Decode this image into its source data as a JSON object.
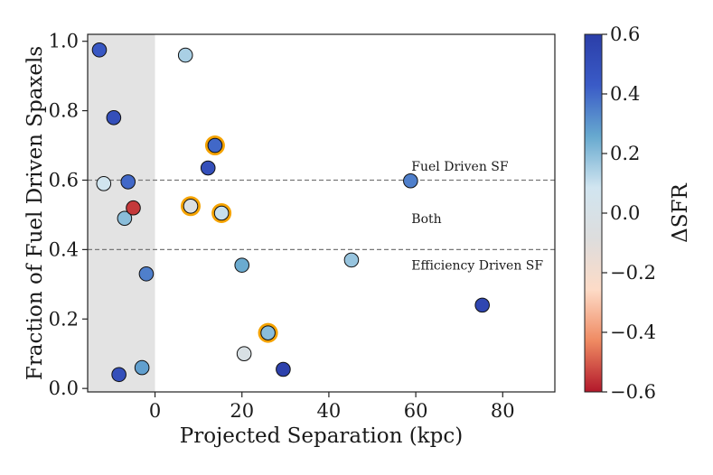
{
  "chart_data": {
    "type": "scatter",
    "xlabel": "Projected Separation (kpc)",
    "ylabel": "Fraction of Fuel Driven Spaxels",
    "xlim": [
      -15.5,
      92
    ],
    "ylim": [
      -0.01,
      1.02
    ],
    "xticks": [
      0,
      20,
      40,
      60,
      80
    ],
    "yticks": [
      0.0,
      0.2,
      0.4,
      0.6,
      0.8,
      1.0
    ],
    "x_tick_labels": [
      "0",
      "20",
      "40",
      "60",
      "80"
    ],
    "y_tick_labels": [
      "0.0",
      "0.2",
      "0.4",
      "0.6",
      "0.8",
      "1.0"
    ],
    "shaded_region": {
      "x0": -15.5,
      "x1": 0,
      "color": "#e3e3e3"
    },
    "reference_lines": [
      {
        "y": 0.6,
        "label": "Fuel Driven SF",
        "label_x": 59,
        "label_y": 0.64
      },
      {
        "y": 0.4,
        "label": "Efficiency Driven SF",
        "label_x": 59,
        "label_y": 0.355
      }
    ],
    "region_annotations": [
      {
        "text": "Both",
        "x": 59,
        "y": 0.49
      }
    ],
    "points": [
      {
        "x": -12.8,
        "y": 0.975,
        "c": 0.45,
        "highlight": false
      },
      {
        "x": -9.5,
        "y": 0.78,
        "c": 0.5,
        "highlight": false
      },
      {
        "x": -11.8,
        "y": 0.59,
        "c": 0.08,
        "highlight": false
      },
      {
        "x": -6.2,
        "y": 0.595,
        "c": 0.4,
        "highlight": false
      },
      {
        "x": -7.0,
        "y": 0.49,
        "c": 0.2,
        "highlight": false
      },
      {
        "x": -5.0,
        "y": 0.52,
        "c": -0.55,
        "highlight": false
      },
      {
        "x": -2.0,
        "y": 0.33,
        "c": 0.35,
        "highlight": false
      },
      {
        "x": -8.3,
        "y": 0.04,
        "c": 0.5,
        "highlight": false
      },
      {
        "x": -3.0,
        "y": 0.06,
        "c": 0.28,
        "highlight": false
      },
      {
        "x": 7.0,
        "y": 0.96,
        "c": 0.15,
        "highlight": false
      },
      {
        "x": 12.2,
        "y": 0.635,
        "c": 0.5,
        "highlight": false
      },
      {
        "x": 13.8,
        "y": 0.7,
        "c": 0.4,
        "highlight": true
      },
      {
        "x": 8.2,
        "y": 0.525,
        "c": -0.05,
        "highlight": true
      },
      {
        "x": 15.3,
        "y": 0.505,
        "c": 0.1,
        "highlight": true
      },
      {
        "x": 20.0,
        "y": 0.355,
        "c": 0.25,
        "highlight": false
      },
      {
        "x": 20.5,
        "y": 0.1,
        "c": -0.02,
        "highlight": false
      },
      {
        "x": 26.0,
        "y": 0.16,
        "c": 0.2,
        "highlight": true
      },
      {
        "x": 29.5,
        "y": 0.055,
        "c": 0.58,
        "highlight": false
      },
      {
        "x": 45.2,
        "y": 0.37,
        "c": 0.18,
        "highlight": false
      },
      {
        "x": 58.8,
        "y": 0.598,
        "c": 0.35,
        "highlight": false
      },
      {
        "x": 75.3,
        "y": 0.24,
        "c": 0.55,
        "highlight": false
      }
    ],
    "highlight_color": "#f5a300",
    "colorbar": {
      "label": "ΔSFR",
      "vmin": -0.6,
      "vmax": 0.6,
      "ticks": [
        0.6,
        0.4,
        0.2,
        0.0,
        -0.2,
        -0.4,
        -0.6
      ],
      "tick_labels": [
        "0.6",
        "0.4",
        "0.2",
        "0.0",
        "−0.2",
        "−0.4",
        "−0.6"
      ],
      "colormap": "coolwarm_r",
      "stops": [
        "#b2182b",
        "#ef8a62",
        "#fddbc7",
        "#dddddd",
        "#d1e5f0",
        "#67a9cf",
        "#3a5bc7",
        "#2b3ea8"
      ]
    }
  }
}
